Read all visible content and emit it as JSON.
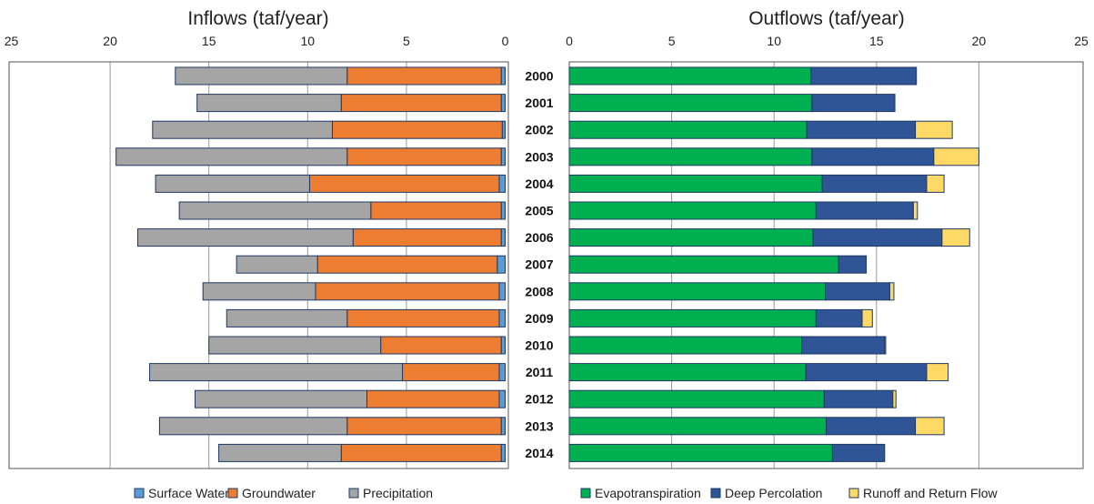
{
  "chart_data": [
    {
      "type": "bar",
      "orientation": "horizontal",
      "stacked": true,
      "reversed_x": true,
      "title": "Inflows (taf/year)",
      "xlim": [
        0,
        25
      ],
      "xticks": [
        25,
        20,
        15,
        10,
        5,
        0
      ],
      "categories": [
        "2000",
        "2001",
        "2002",
        "2003",
        "2004",
        "2005",
        "2006",
        "2007",
        "2008",
        "2009",
        "2010",
        "2011",
        "2012",
        "2013",
        "2014"
      ],
      "legend_position": "bottom",
      "grid": true,
      "series": [
        {
          "name": "Surface Water",
          "color": "#5b9bd5",
          "values": [
            0.2,
            0.2,
            0.15,
            0.2,
            0.3,
            0.2,
            0.2,
            0.4,
            0.3,
            0.3,
            0.2,
            0.3,
            0.3,
            0.2,
            0.2
          ]
        },
        {
          "name": "Groundwater",
          "color": "#ed7d31",
          "values": [
            7.8,
            8.1,
            8.6,
            7.8,
            9.6,
            6.6,
            7.5,
            9.1,
            9.3,
            7.7,
            6.1,
            4.9,
            6.7,
            7.8,
            8.1
          ]
        },
        {
          "name": "Precipitation",
          "color": "#a5a5a5",
          "values": [
            8.7,
            7.3,
            9.1,
            11.7,
            7.8,
            9.7,
            10.9,
            4.1,
            5.7,
            6.1,
            8.7,
            12.8,
            8.7,
            9.5,
            6.2
          ]
        }
      ]
    },
    {
      "type": "bar",
      "orientation": "horizontal",
      "stacked": true,
      "title": "Outflows (taf/year)",
      "xlim": [
        0,
        25
      ],
      "xticks": [
        0,
        5,
        10,
        15,
        20,
        25
      ],
      "categories": [
        "2000",
        "2001",
        "2002",
        "2003",
        "2004",
        "2005",
        "2006",
        "2007",
        "2008",
        "2009",
        "2010",
        "2011",
        "2012",
        "2013",
        "2014"
      ],
      "legend_position": "bottom",
      "grid": true,
      "series": [
        {
          "name": "Evapotranspiration",
          "color": "#00b050",
          "values": [
            11.8,
            11.85,
            11.6,
            11.85,
            12.35,
            12.05,
            11.9,
            13.15,
            12.5,
            12.05,
            11.35,
            11.55,
            12.45,
            12.55,
            12.85
          ]
        },
        {
          "name": "Deep Percolation",
          "color": "#2f5597",
          "values": [
            5.15,
            4.05,
            5.3,
            5.95,
            5.1,
            4.75,
            6.3,
            1.35,
            3.15,
            2.25,
            4.05,
            5.9,
            3.35,
            4.35,
            2.55
          ]
        },
        {
          "name": "Runoff and Return Flow",
          "color": "#ffd966",
          "values": [
            0,
            0,
            1.8,
            2.2,
            0.85,
            0.2,
            1.35,
            0,
            0.2,
            0.5,
            0.05,
            1.05,
            0.15,
            1.4,
            0
          ]
        }
      ]
    }
  ]
}
